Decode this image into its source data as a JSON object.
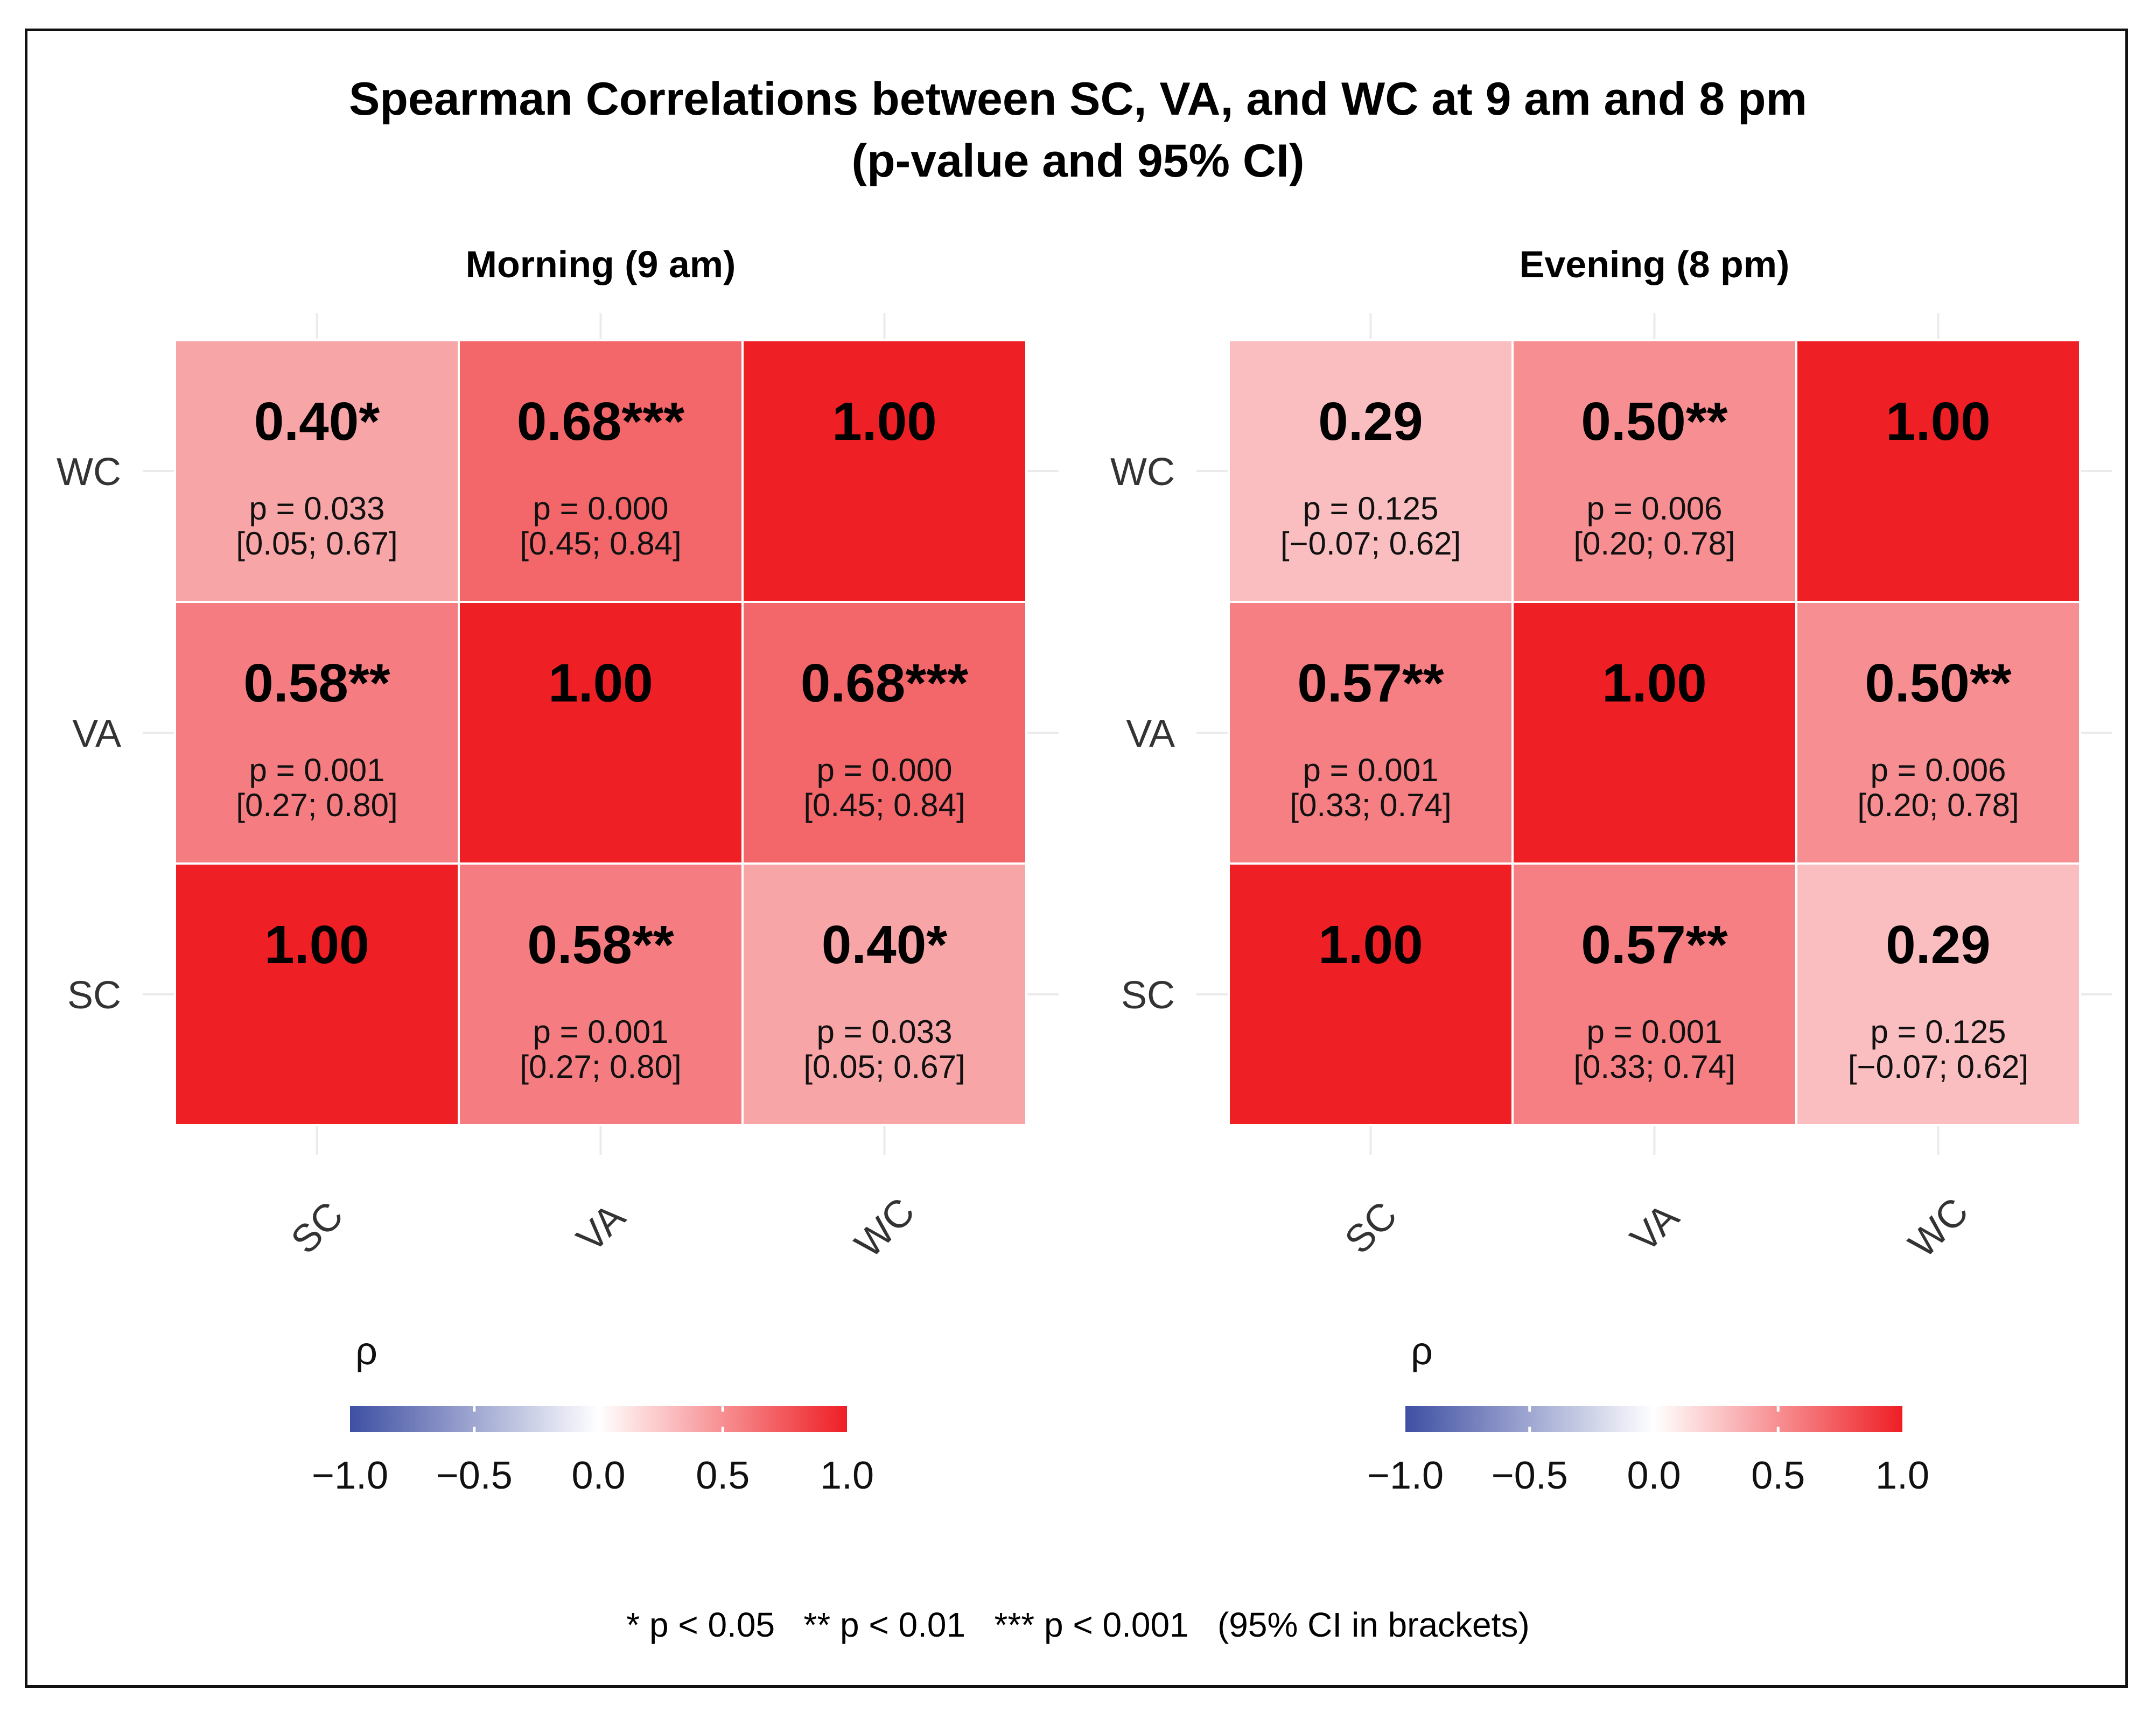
{
  "chart_data": {
    "type": "heatmap",
    "title": "Spearman Correlations between SC, VA, and WC at 9 am and 8 pm",
    "subtitle": "(p-value and 95% CI)",
    "footnote": "* p < 0.05   ** p < 0.01   *** p < 0.001   (95% CI in brackets)",
    "variables": [
      "SC",
      "VA",
      "WC"
    ],
    "legend": {
      "title": "ρ",
      "range": [
        -1.0,
        1.0
      ],
      "ticks": [
        -1.0,
        -0.5,
        0.0,
        0.5,
        1.0
      ],
      "tick_labels": [
        "−1.0",
        "−0.5",
        "0.0",
        "0.5",
        "1.0"
      ],
      "low_color": "#3F4FA3",
      "mid_color": "#FFFFFF",
      "high_color": "#EE1F25",
      "position": "bottom"
    },
    "panels": [
      {
        "title": "Morning (9 am)",
        "cells": [
          {
            "x": "SC",
            "y": "WC",
            "value": 0.4,
            "label": "0.40*",
            "p": "p = 0.033",
            "ci": "[0.05; 0.67]"
          },
          {
            "x": "VA",
            "y": "WC",
            "value": 0.68,
            "label": "0.68***",
            "p": "p = 0.000",
            "ci": "[0.45; 0.84]"
          },
          {
            "x": "WC",
            "y": "WC",
            "value": 1.0,
            "label": "1.00",
            "p": "",
            "ci": ""
          },
          {
            "x": "SC",
            "y": "VA",
            "value": 0.58,
            "label": "0.58**",
            "p": "p = 0.001",
            "ci": "[0.27; 0.80]"
          },
          {
            "x": "VA",
            "y": "VA",
            "value": 1.0,
            "label": "1.00",
            "p": "",
            "ci": ""
          },
          {
            "x": "WC",
            "y": "VA",
            "value": 0.68,
            "label": "0.68***",
            "p": "p = 0.000",
            "ci": "[0.45; 0.84]"
          },
          {
            "x": "SC",
            "y": "SC",
            "value": 1.0,
            "label": "1.00",
            "p": "",
            "ci": ""
          },
          {
            "x": "VA",
            "y": "SC",
            "value": 0.58,
            "label": "0.58**",
            "p": "p = 0.001",
            "ci": "[0.27; 0.80]"
          },
          {
            "x": "WC",
            "y": "SC",
            "value": 0.4,
            "label": "0.40*",
            "p": "p = 0.033",
            "ci": "[0.05; 0.67]"
          }
        ]
      },
      {
        "title": "Evening (8 pm)",
        "cells": [
          {
            "x": "SC",
            "y": "WC",
            "value": 0.29,
            "label": "0.29",
            "p": "p = 0.125",
            "ci": "[−0.07; 0.62]"
          },
          {
            "x": "VA",
            "y": "WC",
            "value": 0.5,
            "label": "0.50**",
            "p": "p = 0.006",
            "ci": "[0.20; 0.78]"
          },
          {
            "x": "WC",
            "y": "WC",
            "value": 1.0,
            "label": "1.00",
            "p": "",
            "ci": ""
          },
          {
            "x": "SC",
            "y": "VA",
            "value": 0.57,
            "label": "0.57**",
            "p": "p = 0.001",
            "ci": "[0.33; 0.74]"
          },
          {
            "x": "VA",
            "y": "VA",
            "value": 1.0,
            "label": "1.00",
            "p": "",
            "ci": ""
          },
          {
            "x": "WC",
            "y": "VA",
            "value": 0.5,
            "label": "0.50**",
            "p": "p = 0.006",
            "ci": "[0.20; 0.78]"
          },
          {
            "x": "SC",
            "y": "SC",
            "value": 1.0,
            "label": "1.00",
            "p": "",
            "ci": ""
          },
          {
            "x": "VA",
            "y": "SC",
            "value": 0.57,
            "label": "0.57**",
            "p": "p = 0.001",
            "ci": "[0.33; 0.74]"
          },
          {
            "x": "WC",
            "y": "SC",
            "value": 0.29,
            "label": "0.29",
            "p": "p = 0.125",
            "ci": "[−0.07; 0.62]"
          }
        ]
      }
    ]
  }
}
